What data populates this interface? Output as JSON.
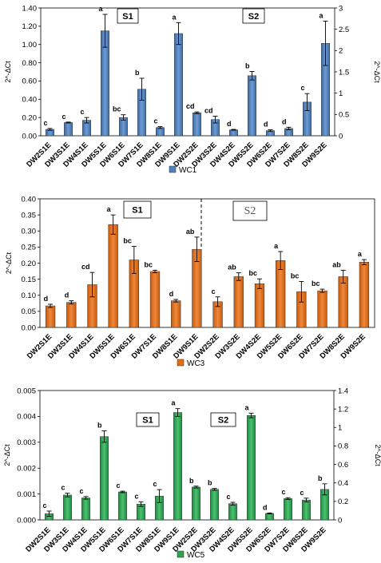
{
  "chart_data": [
    {
      "type": "bar",
      "series": [
        {
          "name": "WC1",
          "color": "#4f81bd"
        }
      ],
      "ylabel": "2^-ΔCt",
      "ylabel_right": "2^-ΔCt",
      "ylim": [
        0,
        1.4
      ],
      "y_ticks": [
        "0.00",
        "0.20",
        "0.40",
        "0.60",
        "0.80",
        "1.00",
        "1.20",
        "1.40"
      ],
      "ylim_right": [
        0,
        3
      ],
      "y_ticks_right": [
        "0",
        "0.5",
        "1",
        "1.5",
        "2",
        "2.5",
        "3"
      ],
      "groups": [
        "S1",
        "S2"
      ],
      "bars": [
        {
          "category": "DW2S1E",
          "value": 0.07,
          "error": 0.01,
          "label": "c",
          "axis": "left"
        },
        {
          "category": "DW3S1E",
          "value": 0.145,
          "error": 0.005,
          "label": "c",
          "axis": "left"
        },
        {
          "category": "DW4S1E",
          "value": 0.17,
          "error": 0.03,
          "label": "c",
          "axis": "left"
        },
        {
          "category": "DW5S1E",
          "value": 1.15,
          "error": 0.18,
          "label": "a",
          "axis": "left"
        },
        {
          "category": "DW6S1E",
          "value": 0.2,
          "error": 0.03,
          "label": "bc",
          "axis": "left"
        },
        {
          "category": "DW7S1E",
          "value": 0.51,
          "error": 0.12,
          "label": "b",
          "axis": "left"
        },
        {
          "category": "DW8S1E",
          "value": 0.09,
          "error": 0.01,
          "label": "c",
          "axis": "left"
        },
        {
          "category": "DW9S1E",
          "value": 1.12,
          "error": 0.12,
          "label": "a",
          "axis": "left"
        },
        {
          "category": "DW2S2E",
          "value": 0.54,
          "error": 0.02,
          "label": "cd",
          "axis": "right"
        },
        {
          "category": "DW3S2E",
          "value": 0.38,
          "error": 0.08,
          "label": "cd",
          "axis": "right"
        },
        {
          "category": "DW4S2E",
          "value": 0.14,
          "error": 0.01,
          "label": "d",
          "axis": "right"
        },
        {
          "category": "DW5S2E",
          "value": 1.41,
          "error": 0.1,
          "label": "b",
          "axis": "right"
        },
        {
          "category": "DW6S2E",
          "value": 0.12,
          "error": 0.02,
          "label": "d",
          "axis": "right"
        },
        {
          "category": "DW7S2E",
          "value": 0.17,
          "error": 0.03,
          "label": "d",
          "axis": "right"
        },
        {
          "category": "DW8S2E",
          "value": 0.79,
          "error": 0.2,
          "label": "c",
          "axis": "right"
        },
        {
          "category": "DW9S2E",
          "value": 2.17,
          "error": 0.52,
          "label": "a",
          "axis": "right"
        }
      ]
    },
    {
      "type": "bar",
      "series": [
        {
          "name": "WC3",
          "color": "#e46c0a"
        }
      ],
      "ylabel": "2^-ΔCt",
      "ylim": [
        0,
        0.4
      ],
      "y_ticks": [
        "0.00",
        "0.05",
        "0.10",
        "0.15",
        "0.20",
        "0.25",
        "0.30",
        "0.35",
        "0.40"
      ],
      "groups": [
        "S1",
        "S2"
      ],
      "bars": [
        {
          "category": "DW2S1E",
          "value": 0.067,
          "error": 0.005,
          "label": "d",
          "axis": "left"
        },
        {
          "category": "DW3S1E",
          "value": 0.078,
          "error": 0.005,
          "label": "d",
          "axis": "left"
        },
        {
          "category": "DW4S1E",
          "value": 0.133,
          "error": 0.038,
          "label": "cd",
          "axis": "left"
        },
        {
          "category": "DW5S1E",
          "value": 0.32,
          "error": 0.03,
          "label": "a",
          "axis": "left"
        },
        {
          "category": "DW6S1E",
          "value": 0.21,
          "error": 0.042,
          "label": "bc",
          "axis": "left"
        },
        {
          "category": "DW7S1E",
          "value": 0.174,
          "error": 0.004,
          "label": "bc",
          "axis": "left"
        },
        {
          "category": "DW8S1E",
          "value": 0.083,
          "error": 0.004,
          "label": "d",
          "axis": "left"
        },
        {
          "category": "DW9S1E",
          "value": 0.243,
          "error": 0.038,
          "label": "ab",
          "axis": "left"
        },
        {
          "category": "DW2S2E",
          "value": 0.08,
          "error": 0.015,
          "label": "c",
          "axis": "left"
        },
        {
          "category": "DW3S2E",
          "value": 0.158,
          "error": 0.012,
          "label": "ab",
          "axis": "left"
        },
        {
          "category": "DW4S2E",
          "value": 0.136,
          "error": 0.015,
          "label": "bc",
          "axis": "left"
        },
        {
          "category": "DW5S2E",
          "value": 0.208,
          "error": 0.028,
          "label": "a",
          "axis": "left"
        },
        {
          "category": "DW6S2E",
          "value": 0.111,
          "error": 0.032,
          "label": "bc",
          "axis": "left"
        },
        {
          "category": "DW7S2E",
          "value": 0.114,
          "error": 0.005,
          "label": "bc",
          "axis": "left"
        },
        {
          "category": "DW8S2E",
          "value": 0.158,
          "error": 0.02,
          "label": "ab",
          "axis": "left"
        },
        {
          "category": "DW9S2E",
          "value": 0.203,
          "error": 0.008,
          "label": "a",
          "axis": "left"
        }
      ]
    },
    {
      "type": "bar",
      "series": [
        {
          "name": "WC5",
          "color": "#2ea44f"
        }
      ],
      "ylabel": "2^-ΔCt",
      "ylabel_right": "2^-ΔCt",
      "ylim": [
        0,
        0.005
      ],
      "y_ticks": [
        "0.000",
        "0.001",
        "0.002",
        "0.003",
        "0.004",
        "0.005"
      ],
      "ylim_right": [
        0,
        1.4
      ],
      "y_ticks_right": [
        "0",
        "0.2",
        "0.4",
        "0.6",
        "0.8",
        "1",
        "1.2",
        "1.4"
      ],
      "groups": [
        "S1",
        "S2"
      ],
      "bars": [
        {
          "category": "DW2S1E",
          "value": 0.00024,
          "error": 0.0001,
          "label": "c",
          "axis": "left"
        },
        {
          "category": "DW3S1E",
          "value": 0.00096,
          "error": 7e-05,
          "label": "c",
          "axis": "left"
        },
        {
          "category": "DW4S1E",
          "value": 0.00085,
          "error": 5e-05,
          "label": "c",
          "axis": "left"
        },
        {
          "category": "DW5S1E",
          "value": 0.00322,
          "error": 0.00022,
          "label": "b",
          "axis": "left"
        },
        {
          "category": "DW6S1E",
          "value": 0.00108,
          "error": 3e-05,
          "label": "c",
          "axis": "left"
        },
        {
          "category": "DW7S1E",
          "value": 0.00061,
          "error": 9e-05,
          "label": "c",
          "axis": "left"
        },
        {
          "category": "DW8S1E",
          "value": 0.00092,
          "error": 0.00025,
          "label": "c",
          "axis": "left"
        },
        {
          "category": "DW9S1E",
          "value": 0.00415,
          "error": 0.00015,
          "label": "a",
          "axis": "left"
        },
        {
          "category": "DW2S2E",
          "value": 0.355,
          "error": 0.01,
          "label": "b",
          "axis": "right"
        },
        {
          "category": "DW3S2E",
          "value": 0.33,
          "error": 0.01,
          "label": "b",
          "axis": "right"
        },
        {
          "category": "DW4S2E",
          "value": 0.175,
          "error": 0.015,
          "label": "c",
          "axis": "right"
        },
        {
          "category": "DW5S2E",
          "value": 1.13,
          "error": 0.025,
          "label": "a",
          "axis": "right"
        },
        {
          "category": "DW6S2E",
          "value": 0.07,
          "error": 0.005,
          "label": "d",
          "axis": "right"
        },
        {
          "category": "DW7S2E",
          "value": 0.23,
          "error": 0.01,
          "label": "c",
          "axis": "right"
        },
        {
          "category": "DW8S2E",
          "value": 0.215,
          "error": 0.02,
          "label": "c",
          "axis": "right"
        },
        {
          "category": "DW9S2E",
          "value": 0.33,
          "error": 0.06,
          "label": "b",
          "axis": "right"
        }
      ]
    }
  ]
}
